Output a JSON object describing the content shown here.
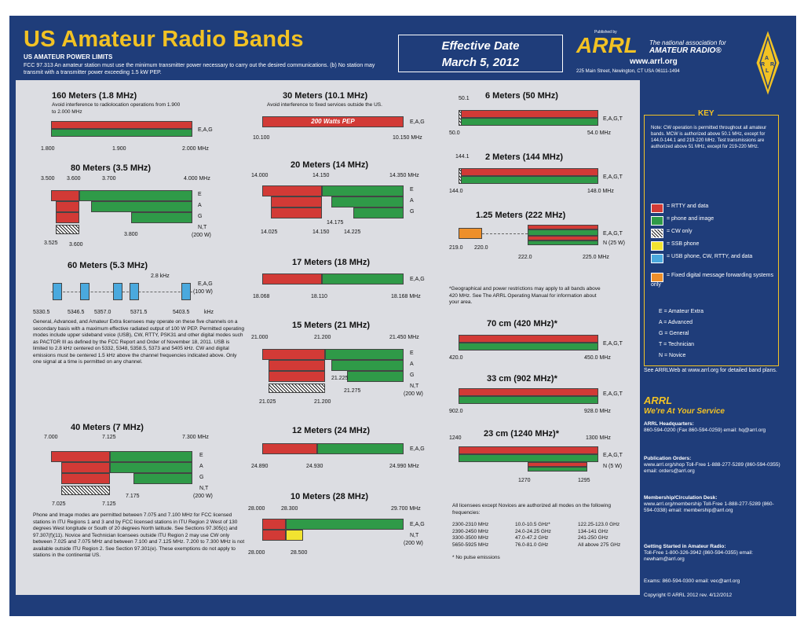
{
  "header": {
    "title": "US Amateur Radio Bands",
    "power_limits": "US AMATEUR POWER LIMITS",
    "fcc_text": "FCC 97.313 An amateur station must use the minimum transmitter power necessary to carry out the desired communications. (b) No station may transmit with a transmitter power exceeding 1.5 kW PEP.",
    "effective_line1": "Effective Date",
    "effective_line2": "March 5, 2012",
    "published_by": "Published by",
    "arrl": "ARRL",
    "tagline1": "The national association for",
    "tagline2": "AMATEUR RADIO®",
    "website": "www.arrl.org",
    "address": "225 Main Street, Newington, CT USA 06111-1494",
    "diamond_letters": [
      "A",
      "R",
      "R",
      "L"
    ]
  },
  "bands": {
    "b160": {
      "title": "160 Meters (1.8 MHz)",
      "note": "Avoid interference to radiolocation operations from 1.900 to 2.000 MHz",
      "classes": "E,A,G",
      "ticks": [
        "1.800",
        "1.900",
        "2.000 MHz"
      ]
    },
    "b80": {
      "title": "80 Meters (3.5 MHz)",
      "ticks_top": [
        "3.500",
        "3.600",
        "3.700",
        "4.000 MHz"
      ],
      "ticks_bottom": [
        "3.525",
        "3.600",
        "3.800"
      ],
      "classes": [
        "E",
        "A",
        "G",
        "N,T",
        "(200 W)"
      ]
    },
    "b60": {
      "title": "60 Meters (5.3 MHz)",
      "bw": "2.8 kHz",
      "classes": "E,A,G",
      "power": "(100 W)",
      "freqs": [
        "5330.5",
        "5346.5",
        "5357.0",
        "5371.5",
        "5403.5",
        "kHz"
      ],
      "note": "General, Advanced, and Amateur Extra licensees may operate on these five channels on a secondary basis with a maximum effective radiated output of 100 W PEP. Permitted operating modes include upper sideband voice (USB), CW, RTTY, PSK31 and other digital modes such as PACTOR III as defined by the FCC Report and Order of November 18, 2011. USB is limited to 2.8 kHz centered on 5332, 5348, 5358.5, 5373 and 5405 kHz. CW and digital emissions must be centered 1.5 kHz above the channel frequencies indicated above. Only one signal at a time is permitted on any channel."
    },
    "b40": {
      "title": "40 Meters (7 MHz)",
      "ticks_top": [
        "7.000",
        "7.125",
        "7.300 MHz"
      ],
      "ticks_bottom": [
        "7.025",
        "7.125",
        "7.175"
      ],
      "classes": [
        "E",
        "A",
        "G",
        "N,T",
        "(200 W)"
      ],
      "note": "Phone and Image modes are permitted between 7.075 and 7.100 MHz for FCC licensed stations in ITU Regions 1 and 3 and by FCC licensed stations in ITU Region 2 West of 130 degrees West longitude or South of 20 degrees North latitude. See Sections 97.305(c) and 97.307(f)(11). Novice and Technician licensees outside ITU Region 2 may use CW only between 7.025 and 7.075 MHz and between 7.100 and 7.125 MHz. 7.200 to 7.300 MHz is not available outside ITU Region 2. See Section 97.301(e). These exemptions do not apply to stations in the continental US."
    },
    "b30": {
      "title": "30 Meters (10.1 MHz)",
      "note": "Avoid interference to fixed services outside the US.",
      "bar_text": "200 Watts PEP",
      "classes": "E,A,G",
      "ticks": [
        "10.100",
        "10.150 MHz"
      ]
    },
    "b20": {
      "title": "20 Meters (14 MHz)",
      "ticks_top": [
        "14.000",
        "14.150",
        "14.350 MHz"
      ],
      "ticks_bottom": [
        "14.025",
        "14.150",
        "14.175",
        "14.225"
      ],
      "classes": [
        "E",
        "A",
        "G"
      ]
    },
    "b17": {
      "title": "17 Meters (18 MHz)",
      "classes": "E,A,G",
      "ticks": [
        "18.068",
        "18.110",
        "18.168 MHz"
      ]
    },
    "b15": {
      "title": "15 Meters (21 MHz)",
      "ticks_top": [
        "21.000",
        "21.200",
        "21.450 MHz"
      ],
      "ticks_bottom": [
        "21.025",
        "21.200",
        "21.225",
        "21.275"
      ],
      "classes": [
        "E",
        "A",
        "G",
        "N,T",
        "(200 W)"
      ]
    },
    "b12": {
      "title": "12 Meters (24 MHz)",
      "classes": "E,A,G",
      "ticks": [
        "24.890",
        "24.930",
        "24.990 MHz"
      ]
    },
    "b10": {
      "title": "10 Meters (28 MHz)",
      "ticks_top": [
        "28.000",
        "28.300",
        "29.700 MHz"
      ],
      "ticks_bottom": [
        "28.000",
        "28.500"
      ],
      "classes": [
        "E,A,G",
        "N,T",
        "(200 W)"
      ]
    },
    "b6": {
      "title": "6 Meters (50 MHz)",
      "ticks_top": [
        "50.1"
      ],
      "ticks": [
        "50.0",
        "54.0 MHz"
      ],
      "classes": "E,A,G,T"
    },
    "b2": {
      "title": "2 Meters (144 MHz)",
      "ticks_top": [
        "144.1"
      ],
      "ticks": [
        "144.0",
        "148.0 MHz"
      ],
      "classes": "E,A,G,T"
    },
    "b125": {
      "title": "1.25 Meters (222 MHz)",
      "ticks_top": [
        "219.0",
        "220.0"
      ],
      "ticks": [
        "222.0",
        "225.0 MHz"
      ],
      "classes": "E,A,G,T",
      "power": "N (25 W)",
      "note": "*Geographical and power restrictions may apply to all bands above 420 MHz. See The ARRL Operating Manual for information about your area."
    },
    "b70": {
      "title": "70 cm (420 MHz)*",
      "ticks": [
        "420.0",
        "450.0 MHz"
      ],
      "classes": "E,A,G,T"
    },
    "b33": {
      "title": "33 cm (902 MHz)*",
      "ticks": [
        "902.0",
        "928.0 MHz"
      ],
      "classes": "E,A,G,T"
    },
    "b23": {
      "title": "23 cm (1240 MHz)*",
      "ticks_top": [
        "1240",
        "1300 MHz"
      ],
      "ticks_bottom": [
        "1270",
        "1295"
      ],
      "classes": "E,A,G,T",
      "power": "N (5 W)"
    }
  },
  "above_bands": {
    "intro": "All licensees except Novices are authorized all modes on the following frequencies:",
    "col1": [
      "2300-2310 MHz",
      "2390-2450 MHz",
      "3300-3500 MHz",
      "5650-5925 MHz"
    ],
    "col2": [
      "10.0-10.5 GHz*",
      "24.0-24.25 GHz",
      "47.0-47.2 GHz",
      "76.0-81.0 GHz"
    ],
    "col3": [
      "122.25-123.0 GHz",
      "134-141 GHz",
      "241-250 GHz",
      "All above 275 GHz"
    ],
    "footnote": "* No pulse emissions"
  },
  "key": {
    "title": "KEY",
    "note": "Note: CW operation is permitted throughout all amateur bands. MCW is authorized above 50.1 MHz, except for 144.0-144.1 and 219-220 MHz. Test transmissions are authorized above 51 MHz, except for 219-220 MHz.",
    "legend": [
      {
        "label": "= RTTY and data",
        "color": "#d23a36"
      },
      {
        "label": "= phone and image",
        "color": "#2f9a48"
      },
      {
        "label": "= CW only",
        "color": "hatch"
      },
      {
        "label": "= SSB phone",
        "color": "#f1e330"
      },
      {
        "label": "= USB phone, CW, RTTY, and data",
        "color": "#4aa9de"
      },
      {
        "label": "= Fixed digital message forwarding systems only",
        "color": "#ee8f2a"
      }
    ],
    "licenses": [
      "E = Amateur Extra",
      "A = Advanced",
      "G = General",
      "T = Technician",
      "N = Novice"
    ]
  },
  "right": {
    "see": "See ARRLWeb at www.arrl.org for detailed band plans.",
    "service1": "ARRL",
    "service2": "We're At Your Service",
    "hq_title": "ARRL Headquarters:",
    "hq": "860-594-0200 (Fax 860-594-0259) email: hq@arrl.org",
    "pub_title": "Publication Orders:",
    "pub": "www.arrl.org/shop Toll-Free 1-888-277-5289 (860-594-0355) email: orders@arrl.org",
    "mem_title": "Membership/Circulation Desk:",
    "mem": "www.arrl.org/membership Toll-Free 1-888-277-5289 (860-594-0338) email: membership@arrl.org",
    "start_title": "Getting Started in Amateur Radio:",
    "start": "Toll-Free 1-800-326-3942 (860-594-0355) email: newham@arrl.org",
    "exams": "Exams: 860-594-0300 email: vec@arrl.org",
    "copyright": "Copyright © ARRL 2012 rev. 4/12/2012"
  }
}
